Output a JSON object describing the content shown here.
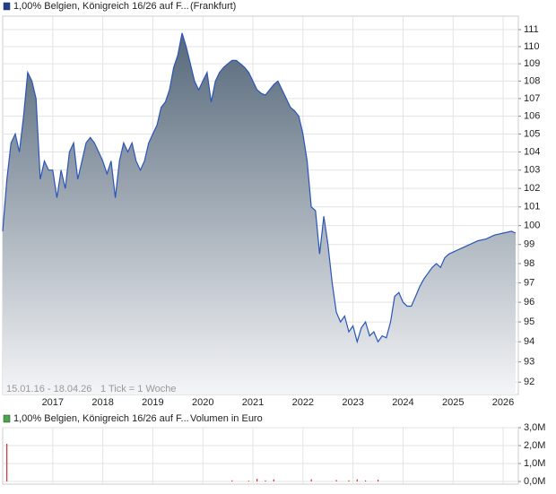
{
  "chart_data": [
    {
      "type": "area",
      "legend": "1,00% Belgien, Königreich 16/26 auf F...",
      "exchange": "(Frankfurt)",
      "legend_color": "#1f3f8f",
      "period": "15.01.16 - 18.04.26",
      "tick_note": "1 Tick = 1 Woche",
      "line_color": "#2a55b8",
      "fill_top": "#56687a",
      "fill_bottom": "#f4f5f7",
      "log_scale": true,
      "grid": true,
      "values": [
        99.7,
        102.5,
        104.5,
        105,
        104,
        106,
        108.5,
        108,
        107,
        102.5,
        103.5,
        103,
        103,
        101.5,
        103,
        102,
        104,
        104.5,
        102.5,
        103.5,
        104.5,
        104.8,
        104.5,
        104,
        103.5,
        102.8,
        103.5,
        101.5,
        103.5,
        104.5,
        104,
        104.5,
        103.5,
        103,
        103.5,
        104.5,
        105,
        105.5,
        106.5,
        106.8,
        107.5,
        108.8,
        109.5,
        110.8,
        110,
        109,
        108,
        107.5,
        108,
        108.5,
        106.8,
        108,
        108.5,
        108.8,
        109,
        109.2,
        109.2,
        109,
        108.8,
        108.5,
        108,
        107.5,
        107.3,
        107.2,
        107.5,
        107.8,
        108,
        107.5,
        107,
        106.5,
        106.3,
        106,
        105,
        103.5,
        101,
        100.8,
        98.5,
        100.5,
        99,
        97,
        95.5,
        95,
        95.3,
        94.5,
        94.8,
        94,
        94.7,
        95,
        94.3,
        94.5,
        94,
        94.3,
        94.2,
        95,
        96.3,
        96.5,
        96,
        95.8,
        95.8,
        96.3,
        96.8,
        97.2,
        97.5,
        97.8,
        98,
        97.8,
        98.3,
        98.5,
        98.6,
        98.7,
        98.8,
        98.9,
        99,
        99.1,
        99.2,
        99.25,
        99.3,
        99.4,
        99.5,
        99.55,
        99.6,
        99.65,
        99.7,
        99.6
      ],
      "xlim": [
        0,
        123
      ],
      "xticks": [
        {
          "value": 12,
          "label": "2017"
        },
        {
          "value": 24,
          "label": "2018"
        },
        {
          "value": 36,
          "label": "2019"
        },
        {
          "value": 48,
          "label": "2020"
        },
        {
          "value": 60,
          "label": "2021"
        },
        {
          "value": 72,
          "label": "2022"
        },
        {
          "value": 84,
          "label": "2023"
        },
        {
          "value": 96,
          "label": "2024"
        },
        {
          "value": 108,
          "label": "2025"
        },
        {
          "value": 120,
          "label": "2026"
        }
      ],
      "ylim": [
        91.4,
        111.8
      ],
      "yticks": [
        92,
        93,
        94,
        95,
        96,
        97,
        98,
        99,
        100,
        101,
        102,
        103,
        104,
        105,
        106,
        107,
        108,
        109,
        110,
        111
      ]
    },
    {
      "type": "bar",
      "legend": "1,00% Belgien, Königreich 16/26 auf F...",
      "unit": "Volumen in Euro",
      "legend_color": "#4aa64a",
      "color": "#cc3333",
      "grid": true,
      "values": [
        0,
        2100000,
        0,
        0,
        0,
        0,
        0,
        0,
        0,
        0,
        0,
        0,
        0,
        0,
        0,
        0,
        0,
        0,
        0,
        0,
        0,
        0,
        0,
        0,
        0,
        0,
        0,
        0,
        0,
        0,
        0,
        0,
        0,
        0,
        0,
        0,
        0,
        0,
        0,
        0,
        0,
        0,
        0,
        0,
        0,
        0,
        0,
        0,
        0,
        0,
        0,
        0,
        0,
        0,
        0,
        60000,
        0,
        0,
        0,
        40000,
        0,
        150000,
        0,
        60000,
        0,
        120000,
        0,
        0,
        0,
        0,
        0,
        0,
        0,
        0,
        120000,
        0,
        0,
        0,
        0,
        0,
        80000,
        0,
        0,
        60000,
        0,
        120000,
        0,
        60000,
        0,
        0,
        100000,
        0,
        0,
        0,
        0,
        0,
        0,
        0,
        0,
        0,
        0,
        0,
        0,
        0,
        0,
        0,
        0,
        0,
        0,
        0,
        0,
        0,
        0,
        0,
        0,
        0,
        0,
        0,
        0,
        0,
        0,
        0,
        0,
        0
      ],
      "xlim": [
        0,
        123
      ],
      "ylim": [
        0,
        3000000
      ],
      "yticks": [
        {
          "value": 0,
          "label": "0,0M"
        },
        {
          "value": 1000000,
          "label": "1,0M"
        },
        {
          "value": 2000000,
          "label": "2,0M"
        },
        {
          "value": 3000000,
          "label": "3,0M"
        }
      ]
    }
  ]
}
